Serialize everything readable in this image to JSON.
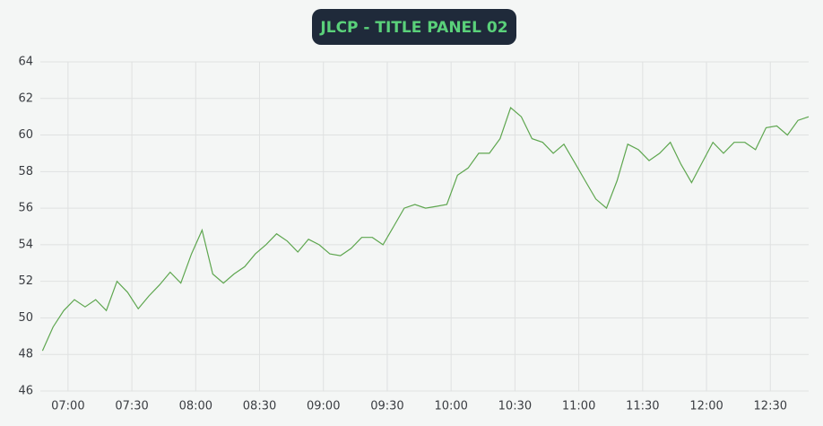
{
  "chart_data": {
    "type": "line",
    "title": "JLCP - TITLE PANEL 02",
    "x": [
      "06:48",
      "06:53",
      "06:58",
      "07:03",
      "07:08",
      "07:13",
      "07:18",
      "07:23",
      "07:28",
      "07:33",
      "07:38",
      "07:43",
      "07:48",
      "07:53",
      "07:58",
      "08:03",
      "08:08",
      "08:13",
      "08:18",
      "08:23",
      "08:28",
      "08:33",
      "08:38",
      "08:43",
      "08:48",
      "08:53",
      "08:58",
      "09:03",
      "09:08",
      "09:13",
      "09:18",
      "09:23",
      "09:28",
      "09:33",
      "09:38",
      "09:43",
      "09:48",
      "09:53",
      "09:58",
      "10:03",
      "10:08",
      "10:13",
      "10:18",
      "10:23",
      "10:28",
      "10:33",
      "10:38",
      "10:43",
      "10:48",
      "10:53",
      "10:58",
      "11:03",
      "11:08",
      "11:13",
      "11:18",
      "11:23",
      "11:28",
      "11:33",
      "11:38",
      "11:43",
      "11:48",
      "11:53",
      "11:58",
      "12:03",
      "12:08",
      "12:13",
      "12:18",
      "12:23",
      "12:28",
      "12:33",
      "12:38",
      "12:43",
      "12:48"
    ],
    "series": [
      {
        "color": "#5ea64f",
        "values": [
          48.2,
          49.5,
          50.4,
          51.0,
          50.6,
          51.0,
          50.4,
          52.0,
          51.4,
          50.5,
          51.2,
          51.8,
          52.5,
          51.9,
          53.5,
          54.8,
          52.4,
          51.9,
          52.4,
          52.8,
          53.5,
          54.0,
          54.6,
          54.2,
          53.6,
          54.3,
          54.0,
          53.5,
          53.4,
          53.8,
          54.4,
          54.4,
          54.0,
          55.0,
          56.0,
          56.2,
          56.0,
          56.1,
          56.2,
          57.8,
          58.2,
          59.0,
          59.0,
          59.8,
          61.5,
          61.0,
          59.8,
          59.6,
          59.0,
          59.5,
          58.5,
          57.5,
          56.5,
          56.0,
          57.5,
          59.5,
          59.2,
          58.6,
          59.0,
          59.6,
          58.4,
          57.4,
          58.5,
          59.6,
          59.0,
          59.6,
          59.6,
          59.2,
          60.4,
          60.5,
          60.0,
          60.8,
          61.0
        ]
      }
    ],
    "xlim": [
      "06:47",
      "12:48"
    ],
    "xticks": [
      "07:00",
      "07:30",
      "08:00",
      "08:30",
      "09:00",
      "09:30",
      "10:00",
      "10:30",
      "11:00",
      "11:30",
      "12:00",
      "12:30"
    ],
    "ylim": [
      46,
      64
    ],
    "yticks": [
      46,
      48,
      50,
      52,
      54,
      56,
      58,
      60,
      62,
      64
    ],
    "grid": true
  }
}
